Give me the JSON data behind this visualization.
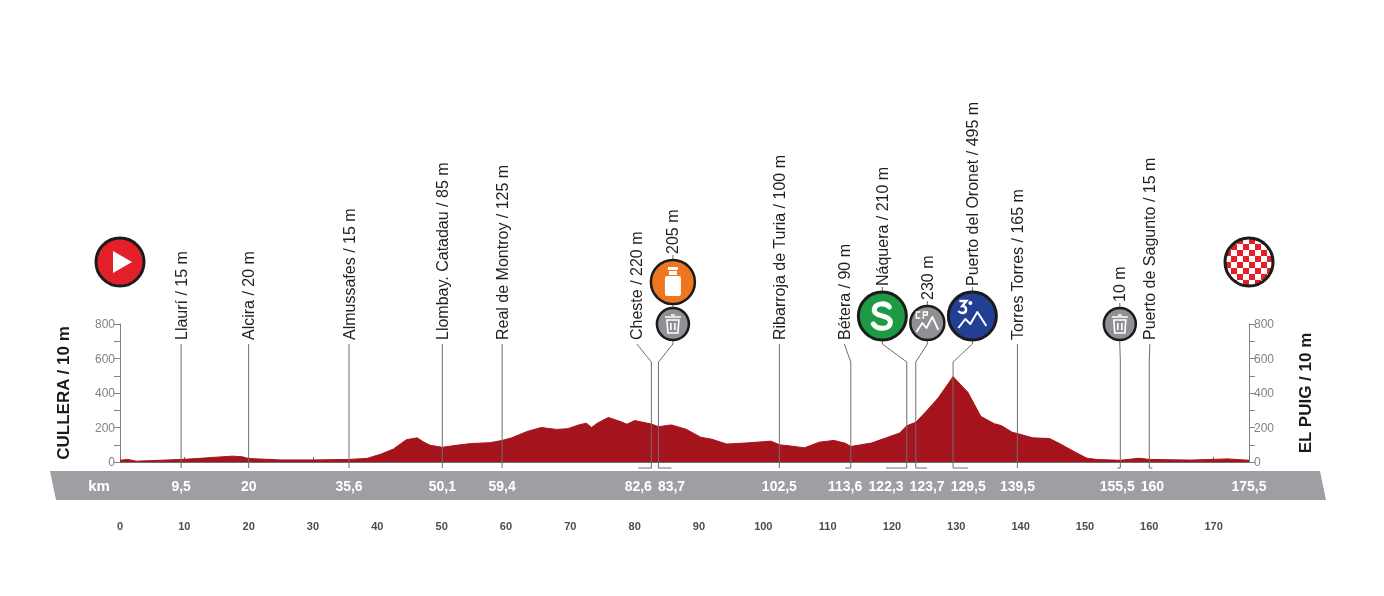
{
  "chart_data": {
    "type": "area",
    "color": "#a5141c",
    "x": [
      0,
      1.2,
      2.5,
      5,
      9.5,
      12,
      15,
      17.5,
      19,
      20,
      25,
      30,
      35.6,
      38.4,
      40.5,
      42.5,
      44.5,
      46.2,
      47.1,
      48.2,
      50.1,
      52.3,
      54.6,
      57.5,
      59.4,
      60.9,
      63.2,
      65.5,
      67.8,
      69.6,
      71.3,
      72.5,
      73.3,
      74.2,
      75.9,
      77.7,
      78.8,
      80,
      82.6,
      83.7,
      85.7,
      88,
      90.3,
      92,
      94.3,
      97.2,
      101.2,
      102.5,
      104.2,
      106.4,
      108.7,
      111,
      112.8,
      113.6,
      116.8,
      119.1,
      121.2,
      122.3,
      123.7,
      125.4,
      127.2,
      129.5,
      130.7,
      131.8,
      133.8,
      135.9,
      137,
      138.7,
      139.5,
      141.9,
      144.5,
      146.2,
      148.5,
      150.3,
      152,
      155.5,
      158.4,
      160,
      166.4,
      172.2,
      175.5
    ],
    "values": [
      10,
      15,
      5,
      8,
      15,
      20,
      28,
      34,
      30,
      20,
      12,
      12,
      15,
      21,
      45,
      75,
      129,
      140,
      118,
      97,
      85,
      97,
      107,
      112,
      125,
      140,
      176,
      200,
      189,
      193,
      215,
      225,
      200,
      225,
      258,
      236,
      219,
      240,
      220,
      205,
      215,
      190,
      143,
      132,
      104,
      110,
      121,
      100,
      93,
      82,
      115,
      125,
      108,
      90,
      110,
      140,
      168,
      210,
      230,
      297,
      372,
      495,
      447,
      404,
      265,
      222,
      211,
      172,
      165,
      140,
      136,
      104,
      57,
      22,
      14,
      10,
      22,
      15,
      11,
      18,
      10
    ],
    "xlim": [
      0,
      175.5
    ],
    "xticks": [
      0,
      10,
      20,
      30,
      40,
      50,
      60,
      70,
      80,
      90,
      100,
      110,
      120,
      130,
      140,
      150,
      160,
      170,
      {
        "value": 175.5,
        "label": null
      }
    ],
    "ylim": [
      0,
      800
    ],
    "yticks": [
      0,
      {
        "value": 100,
        "label": null
      },
      200,
      {
        "value": 300,
        "label": null
      },
      400,
      {
        "value": 500,
        "label": null
      },
      600,
      {
        "value": 700,
        "label": null
      },
      800
    ],
    "y2lim": [
      0,
      800
    ],
    "y2ticks": [
      0,
      {
        "value": 100,
        "label": null
      },
      200,
      {
        "value": 300,
        "label": null
      },
      400,
      {
        "value": 500,
        "label": null
      },
      600,
      {
        "value": 700,
        "label": null
      },
      800
    ],
    "ylabel": "CULLERA / 10 m",
    "y2label": "EL PUIG / 10 m",
    "annotations": [
      "km",
      "9,5",
      "20",
      "35,6",
      "50,1",
      "59,4",
      "82,6",
      "83,7",
      "102,5",
      "113,6",
      "122,3",
      "123,7",
      "129,5",
      "139,5",
      "155,5",
      "160",
      "175,5"
    ],
    "ref_lines": [
      {
        "axis": "x",
        "value": 9.5,
        "label": "Llaurí / 15 m"
      },
      {
        "axis": "x",
        "value": 20,
        "label": "Alcira / 20 m"
      },
      {
        "axis": "x",
        "value": 35.6,
        "label": "Almussafes / 15 m"
      },
      {
        "axis": "x",
        "value": 50.1,
        "label": "Llombay. Catadau / 85 m"
      },
      {
        "axis": "x",
        "value": 59.4,
        "label": "Real de Montroy / 125 m"
      },
      {
        "axis": "x",
        "value": 82.6,
        "label": "Cheste / 220 m"
      },
      {
        "axis": "x",
        "value": 83.7,
        "label": "205 m"
      },
      {
        "axis": "x",
        "value": 102.5,
        "label": "Ribarroja de Turia / 100 m"
      },
      {
        "axis": "x",
        "value": 113.6,
        "label": "Bétera / 90 m"
      },
      {
        "axis": "x",
        "value": 122.3,
        "label": "Náquera / 210 m"
      },
      {
        "axis": "x",
        "value": 123.7,
        "label": "230 m"
      },
      {
        "axis": "x",
        "value": 129.5,
        "label": "Puerto del Oronet / 495 m"
      },
      {
        "axis": "x",
        "value": 139.5,
        "label": "Torres Torres / 165 m"
      },
      {
        "axis": "x",
        "value": 155.5,
        "label": "10 m"
      },
      {
        "axis": "x",
        "value": 160,
        "label": "Puerto de Sagunto / 15 m"
      }
    ]
  }
}
